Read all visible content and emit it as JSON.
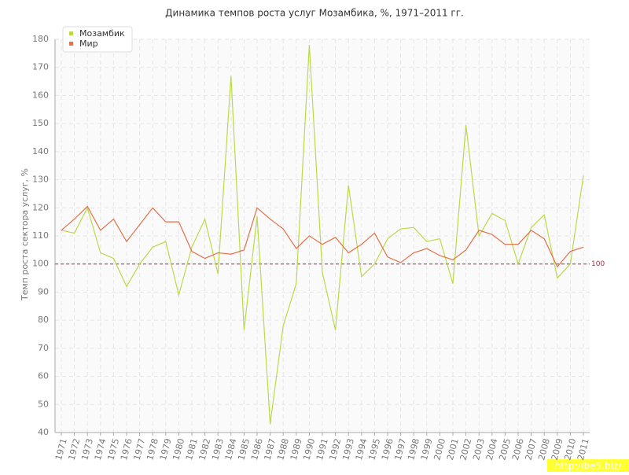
{
  "chart_data": {
    "type": "line",
    "title": "Динамика темпов роста услуг Мозамбика, %, 1971–2011 гг.",
    "y_label": "Темп роста сектора услуг, %",
    "categories": [
      "1971",
      "1972",
      "1973",
      "1974",
      "1975",
      "1976",
      "1977",
      "1978",
      "1979",
      "1980",
      "1981",
      "1982",
      "1983",
      "1984",
      "1985",
      "1986",
      "1987",
      "1988",
      "1989",
      "1990",
      "1991",
      "1992",
      "1993",
      "1994",
      "1995",
      "1996",
      "1997",
      "1998",
      "1999",
      "2000",
      "2001",
      "2002",
      "2003",
      "2004",
      "2005",
      "2006",
      "2007",
      "2008",
      "2009",
      "2010",
      "2011"
    ],
    "series": [
      {
        "name": "Мозамбик",
        "color": "#bcd94a",
        "values": [
          112,
          111,
          120,
          104,
          102,
          92,
          100,
          106,
          108,
          89,
          106,
          116,
          96.5,
          167,
          76.5,
          117,
          43,
          78,
          93,
          178,
          97,
          76.5,
          128,
          95.5,
          100,
          109,
          112.5,
          113,
          108,
          109,
          93,
          149.5,
          110,
          118,
          115.5,
          100,
          113,
          117.5,
          95,
          100,
          131.5
        ]
      },
      {
        "name": "Мир",
        "color": "#e3714a",
        "values": [
          112,
          116,
          120.5,
          112,
          116,
          108,
          114,
          120,
          115,
          115,
          104.5,
          102,
          104,
          103.5,
          105,
          120,
          116,
          112.5,
          105.5,
          110,
          107,
          109.5,
          104,
          107,
          111,
          102.5,
          100.5,
          104,
          105.5,
          103,
          101.5,
          105,
          112,
          110.5,
          107,
          107,
          112,
          109,
          99,
          104.5,
          106
        ]
      }
    ],
    "ylim": [
      40,
      180
    ],
    "yticks": [
      40,
      50,
      60,
      70,
      80,
      90,
      100,
      110,
      120,
      130,
      140,
      150,
      160,
      170,
      180
    ],
    "grid": true,
    "reference_line": 100,
    "reference_color": "#a0304a",
    "legend": "top-left",
    "watermark": "http://be5.biz/"
  }
}
